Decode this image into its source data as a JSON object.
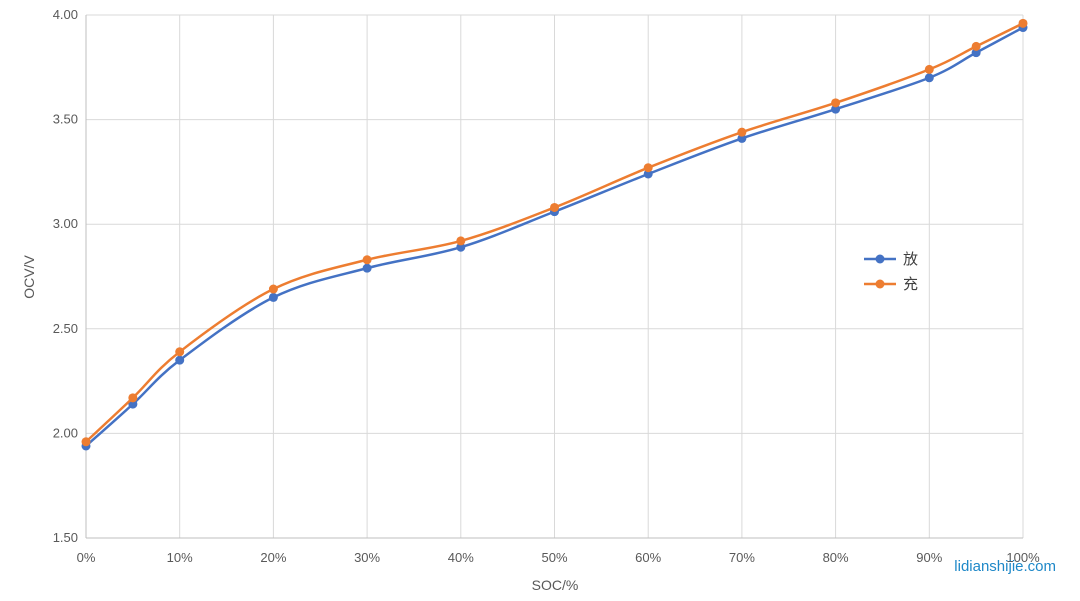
{
  "chart_data": {
    "type": "line",
    "title": "",
    "xlabel": "SOC/%",
    "ylabel": "OCV/V",
    "x": [
      0,
      5,
      10,
      20,
      30,
      40,
      50,
      60,
      70,
      80,
      90,
      95,
      100
    ],
    "xticks": [
      0,
      10,
      20,
      30,
      40,
      50,
      60,
      70,
      80,
      90,
      100
    ],
    "xtick_labels": [
      "0%",
      "10%",
      "20%",
      "30%",
      "40%",
      "50%",
      "60%",
      "70%",
      "80%",
      "90%",
      "100%"
    ],
    "xlim": [
      0,
      100
    ],
    "yticks": [
      1.5,
      2.0,
      2.5,
      3.0,
      3.5,
      4.0
    ],
    "ytick_labels": [
      "1.50",
      "2.00",
      "2.50",
      "3.00",
      "3.50",
      "4.00"
    ],
    "ylim": [
      1.5,
      4.0
    ],
    "grid": true,
    "legend_position": "right",
    "series": [
      {
        "name": "放",
        "color": "#4472c4",
        "values": [
          1.94,
          2.14,
          2.35,
          2.65,
          2.79,
          2.89,
          3.06,
          3.24,
          3.41,
          3.55,
          3.7,
          3.82,
          3.94
        ]
      },
      {
        "name": "充",
        "color": "#ed7d31",
        "values": [
          1.96,
          2.17,
          2.39,
          2.69,
          2.83,
          2.92,
          3.08,
          3.27,
          3.44,
          3.58,
          3.74,
          3.85,
          3.96
        ]
      }
    ]
  },
  "watermark": "lidianshijie.com"
}
